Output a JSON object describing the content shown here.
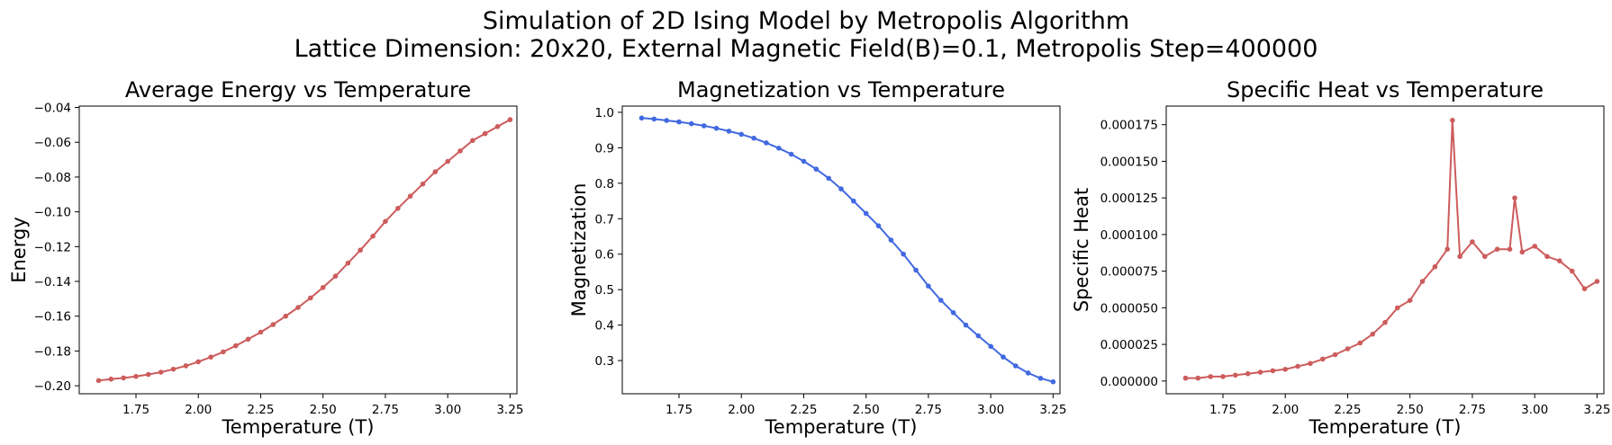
{
  "figure": {
    "title_line1": "Simulation of 2D Ising Model by Metropolis Algorithm",
    "title_line2": "Lattice Dimension: 20x20, External Magnetic Field(B)=0.1, Metropolis Step=400000"
  },
  "chart_data": [
    {
      "type": "line",
      "title": "Average Energy vs Temperature",
      "xlabel": "Temperature (T)",
      "ylabel": "Energy",
      "xlim": [
        1.5225,
        3.2775
      ],
      "ylim": [
        -0.2046,
        -0.0392
      ],
      "xticks": [
        1.75,
        2.0,
        2.25,
        2.5,
        2.75,
        3.0,
        3.25
      ],
      "xtick_labels": [
        "1.75",
        "2.00",
        "2.25",
        "2.50",
        "2.75",
        "3.00",
        "3.25"
      ],
      "yticks": [
        -0.2,
        -0.18,
        -0.16,
        -0.14,
        -0.12,
        -0.1,
        -0.08,
        -0.06,
        -0.04
      ],
      "ytick_labels": [
        "−0.20",
        "−0.18",
        "−0.16",
        "−0.14",
        "−0.12",
        "−0.10",
        "−0.08",
        "−0.06",
        "−0.04"
      ],
      "color": "#cd5c5c",
      "series": [
        {
          "x": [
            1.6,
            1.65,
            1.7,
            1.75,
            1.8,
            1.85,
            1.9,
            1.95,
            2.0,
            2.05,
            2.1,
            2.15,
            2.2,
            2.25,
            2.3,
            2.35,
            2.4,
            2.45,
            2.5,
            2.55,
            2.6,
            2.65,
            2.7,
            2.75,
            2.8,
            2.85,
            2.9,
            2.95,
            3.0,
            3.05,
            3.1,
            3.15,
            3.2,
            3.25
          ],
          "y": [
            -0.197,
            -0.1962,
            -0.1955,
            -0.1946,
            -0.1935,
            -0.1922,
            -0.1905,
            -0.1885,
            -0.1862,
            -0.1835,
            -0.1805,
            -0.177,
            -0.1732,
            -0.1692,
            -0.1648,
            -0.16,
            -0.155,
            -0.1495,
            -0.1435,
            -0.137,
            -0.1295,
            -0.122,
            -0.114,
            -0.1055,
            -0.098,
            -0.091,
            -0.084,
            -0.077,
            -0.071,
            -0.065,
            -0.059,
            -0.055,
            -0.051,
            -0.047
          ]
        }
      ]
    },
    {
      "type": "line",
      "title": "Magnetization vs Temperature",
      "xlabel": "Temperature (T)",
      "ylabel": "Magnetization",
      "xlim": [
        1.5225,
        3.2775
      ],
      "ylim": [
        0.2064,
        1.0176
      ],
      "xticks": [
        1.75,
        2.0,
        2.25,
        2.5,
        2.75,
        3.0,
        3.25
      ],
      "xtick_labels": [
        "1.75",
        "2.00",
        "2.25",
        "2.50",
        "2.75",
        "3.00",
        "3.25"
      ],
      "yticks": [
        0.3,
        0.4,
        0.5,
        0.6,
        0.7,
        0.8,
        0.9,
        1.0
      ],
      "ytick_labels": [
        "0.3",
        "0.4",
        "0.5",
        "0.6",
        "0.7",
        "0.8",
        "0.9",
        "1.0"
      ],
      "color": "#4169e1",
      "series": [
        {
          "x": [
            1.6,
            1.65,
            1.7,
            1.75,
            1.8,
            1.85,
            1.9,
            1.95,
            2.0,
            2.05,
            2.1,
            2.15,
            2.2,
            2.25,
            2.3,
            2.35,
            2.4,
            2.45,
            2.5,
            2.55,
            2.6,
            2.65,
            2.7,
            2.75,
            2.8,
            2.85,
            2.9,
            2.95,
            3.0,
            3.05,
            3.1,
            3.15,
            3.2,
            3.25
          ],
          "y": [
            0.984,
            0.981,
            0.977,
            0.973,
            0.968,
            0.962,
            0.955,
            0.947,
            0.938,
            0.927,
            0.914,
            0.899,
            0.882,
            0.862,
            0.84,
            0.814,
            0.784,
            0.75,
            0.715,
            0.68,
            0.64,
            0.6,
            0.555,
            0.51,
            0.47,
            0.435,
            0.4,
            0.37,
            0.34,
            0.31,
            0.285,
            0.265,
            0.25,
            0.24
          ]
        }
      ]
    },
    {
      "type": "line",
      "title": "Specific Heat vs Temperature",
      "xlabel": "Temperature (T)",
      "ylabel": "Specific Heat",
      "xlim": [
        1.5225,
        3.2775
      ],
      "ylim": [
        -8.7e-06,
        0.0001877
      ],
      "xticks": [
        1.75,
        2.0,
        2.25,
        2.5,
        2.75,
        3.0,
        3.25
      ],
      "xtick_labels": [
        "1.75",
        "2.00",
        "2.25",
        "2.50",
        "2.75",
        "3.00",
        "3.25"
      ],
      "yticks": [
        0.0,
        2.5e-05,
        5e-05,
        7.5e-05,
        0.0001,
        0.000125,
        0.00015,
        0.000175
      ],
      "ytick_labels": [
        "0.000000",
        "0.000025",
        "0.000050",
        "0.000075",
        "0.000100",
        "0.000125",
        "0.000150",
        "0.000175"
      ],
      "color": "#cd5c5c",
      "series": [
        {
          "x": [
            1.6,
            1.65,
            1.7,
            1.75,
            1.8,
            1.85,
            1.9,
            1.95,
            2.0,
            2.05,
            2.1,
            2.15,
            2.2,
            2.25,
            2.3,
            2.35,
            2.4,
            2.45,
            2.5,
            2.55,
            2.6,
            2.65,
            2.67,
            2.7,
            2.75,
            2.8,
            2.85,
            2.9,
            2.92,
            2.95,
            3.0,
            3.05,
            3.1,
            3.15,
            3.2,
            3.25
          ],
          "y": [
            2e-06,
            2e-06,
            3e-06,
            3e-06,
            4e-06,
            5e-06,
            6e-06,
            7e-06,
            8e-06,
            1e-05,
            1.2e-05,
            1.5e-05,
            1.8e-05,
            2.2e-05,
            2.6e-05,
            3.2e-05,
            4e-05,
            5e-05,
            5.5e-05,
            6.8e-05,
            7.8e-05,
            9e-05,
            0.000178,
            8.5e-05,
            9.5e-05,
            8.5e-05,
            9e-05,
            9e-05,
            0.000125,
            8.8e-05,
            9.2e-05,
            8.5e-05,
            8.2e-05,
            7.5e-05,
            6.3e-05,
            6.8e-05
          ]
        }
      ]
    }
  ]
}
